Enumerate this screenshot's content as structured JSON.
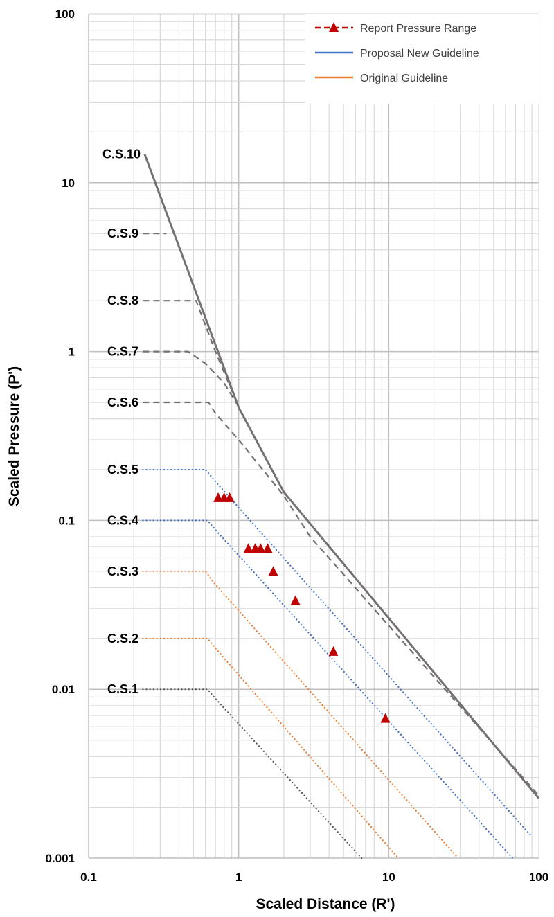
{
  "chart_data": {
    "type": "line",
    "xlabel": "Scaled Distance (R')",
    "ylabel": "Scaled Pressure (P')",
    "xscale": "log",
    "yscale": "log",
    "xlim": [
      0.1,
      100
    ],
    "ylim": [
      0.001,
      100
    ],
    "xticks": [
      "0.1",
      "1",
      "10",
      "100"
    ],
    "yticks": [
      "0.001",
      "0.01",
      "0.1",
      "1",
      "10",
      "100"
    ],
    "grid": true,
    "legend_position": "top-right",
    "legend": [
      {
        "label": "Report Pressure Range",
        "style": "dashed-triangle",
        "color": "#c00000"
      },
      {
        "label": "Proposal New Guideline",
        "style": "solid",
        "color": "#4472c4"
      },
      {
        "label": "Original Guideline",
        "style": "solid",
        "color": "#ed7d31"
      }
    ],
    "curves": [
      {
        "label": "C.S.10",
        "style": "solid",
        "color": "#767171",
        "points": [
          [
            0.236,
            14.8
          ],
          [
            1,
            0.466
          ],
          [
            2,
            0.147
          ],
          [
            100,
            0.00226
          ]
        ]
      },
      {
        "label": "C.S.9",
        "style": "dashed",
        "color": "#767171",
        "points": [
          [
            0.23,
            5
          ],
          [
            0.33,
            5
          ]
        ]
      },
      {
        "label": "C.S.8",
        "style": "dashed",
        "color": "#767171",
        "points": [
          [
            0.23,
            2
          ],
          [
            0.52,
            2
          ],
          [
            0.7,
            1.0
          ],
          [
            1,
            0.47
          ]
        ]
      },
      {
        "label": "C.S.7",
        "style": "dashed",
        "color": "#767171",
        "points": [
          [
            0.23,
            1
          ],
          [
            0.46,
            1
          ],
          [
            0.6,
            0.85
          ],
          [
            0.8,
            0.65
          ],
          [
            1,
            0.47
          ]
        ]
      },
      {
        "label": "C.S.6",
        "style": "dashed",
        "color": "#767171",
        "points": [
          [
            0.23,
            0.5
          ],
          [
            0.63,
            0.5
          ],
          [
            0.7,
            0.43
          ],
          [
            1,
            0.3
          ],
          [
            2,
            0.14
          ],
          [
            3,
            0.08
          ],
          [
            100,
            0.00235
          ]
        ]
      },
      {
        "label": "C.S.5",
        "style": "dotted",
        "color": "#4472c4",
        "points": [
          [
            0.23,
            0.2
          ],
          [
            0.6,
            0.2
          ],
          [
            0.7,
            0.17
          ],
          [
            88,
            0.00137
          ]
        ]
      },
      {
        "label": "C.S.4",
        "style": "dotted",
        "color": "#4472c4",
        "points": [
          [
            0.23,
            0.1
          ],
          [
            0.62,
            0.1
          ],
          [
            0.7,
            0.088
          ],
          [
            67,
            0.001
          ]
        ]
      },
      {
        "label": "C.S.3",
        "style": "dotted",
        "color": "#ed7d31",
        "points": [
          [
            0.23,
            0.05
          ],
          [
            0.6,
            0.05
          ],
          [
            0.68,
            0.043
          ],
          [
            29,
            0.001
          ]
        ]
      },
      {
        "label": "C.S.2",
        "style": "dotted",
        "color": "#ed7d31",
        "points": [
          [
            0.23,
            0.02
          ],
          [
            0.62,
            0.02
          ],
          [
            0.7,
            0.0175
          ],
          [
            11.6,
            0.001
          ]
        ]
      },
      {
        "label": "C.S.1",
        "style": "dotted",
        "color": "#595959",
        "points": [
          [
            0.23,
            0.01
          ],
          [
            0.62,
            0.01
          ],
          [
            0.7,
            0.0088
          ],
          [
            6.6,
            0.001
          ]
        ]
      }
    ],
    "report_points": {
      "color": "#c00000",
      "points": [
        [
          0.73,
          0.136
        ],
        [
          0.8,
          0.136
        ],
        [
          0.87,
          0.136
        ],
        [
          1.16,
          0.068
        ],
        [
          1.29,
          0.068
        ],
        [
          1.4,
          0.068
        ],
        [
          1.56,
          0.068
        ],
        [
          1.7,
          0.0497
        ],
        [
          2.39,
          0.0334
        ],
        [
          4.28,
          0.0167
        ],
        [
          9.5,
          0.0067
        ]
      ]
    }
  }
}
